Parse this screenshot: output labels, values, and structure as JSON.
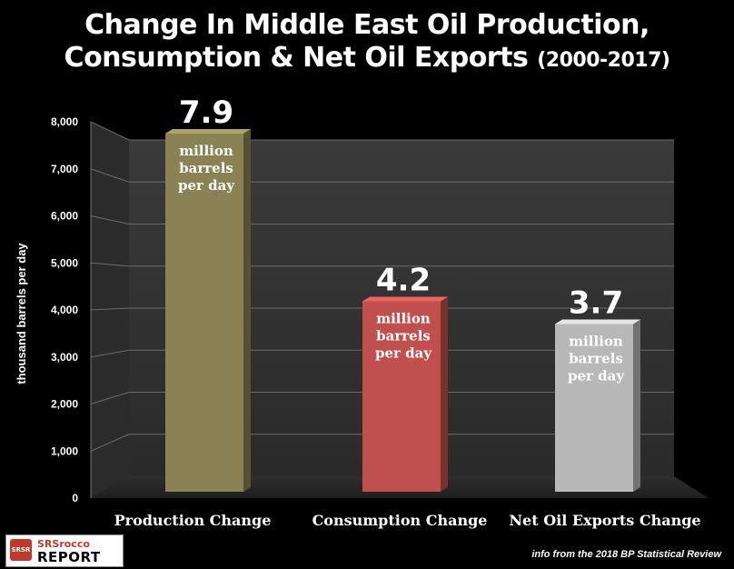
{
  "chart_data": {
    "type": "bar",
    "title_line1": "Change In Middle East Oil Production,",
    "title_line2": "Consumption & Net Oil Exports",
    "title_years": "(2000-2017)",
    "ylabel": "thousand barrels per day",
    "ylim": [
      0,
      8000
    ],
    "yticks": [
      "0",
      "1,000",
      "2,000",
      "3,000",
      "4,000",
      "5,000",
      "6,000",
      "7,000",
      "8,000"
    ],
    "ytick_values": [
      0,
      1000,
      2000,
      3000,
      4000,
      5000,
      6000,
      7000,
      8000
    ],
    "categories": [
      "Production Change",
      "Consumption Change",
      "Net Oil Exports Change"
    ],
    "values": [
      7900,
      4200,
      3700
    ],
    "value_labels": [
      "7.9",
      "4.2",
      "3.7"
    ],
    "unit_lines": [
      "million",
      "barrels",
      "per day"
    ],
    "colors": [
      "#8a8254",
      "#c0504d",
      "#b8b8b8"
    ],
    "grid": true
  },
  "logo": {
    "mark": "SRSR",
    "line1": "SRSrocco",
    "line2": "REPORT"
  },
  "source_note": "info from the 2018 BP Statistical Review"
}
